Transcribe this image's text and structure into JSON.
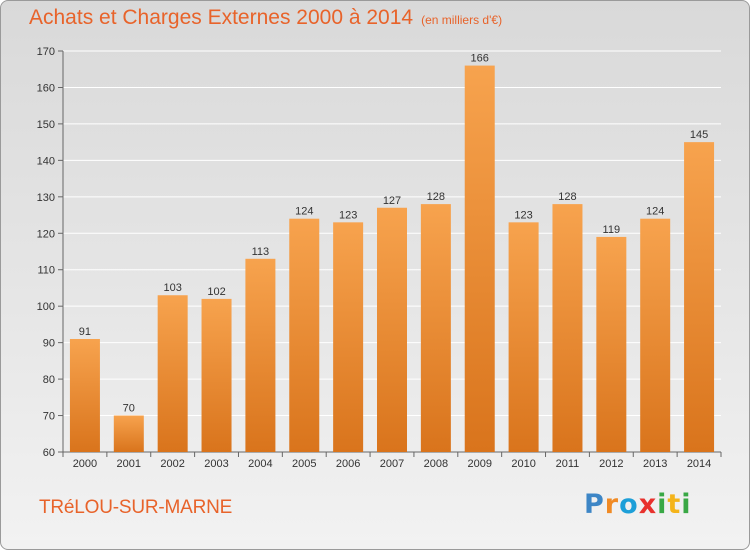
{
  "header": {
    "title": "Achats et Charges Externes 2000 à 2014",
    "unit": "(en milliers d'€)"
  },
  "footer": {
    "commune": "TRéLOU-SUR-MARNE",
    "logo_letters": [
      "P",
      "r",
      "o",
      "x",
      "i",
      "t",
      "i"
    ],
    "logo_colors": [
      "#3d86c6",
      "#f08a24",
      "#1d9fd8",
      "#e8312d",
      "#39a845",
      "#f4b41a",
      "#39a845"
    ]
  },
  "colors": {
    "bar_light": "#f7a34e",
    "bar_dark": "#d9741c",
    "grid": "#ffffff",
    "title": "#e8632a"
  },
  "chart_data": {
    "type": "bar",
    "categories": [
      "2000",
      "2001",
      "2002",
      "2003",
      "2004",
      "2005",
      "2006",
      "2007",
      "2008",
      "2009",
      "2010",
      "2011",
      "2012",
      "2013",
      "2014"
    ],
    "values": [
      91,
      70,
      103,
      102,
      113,
      124,
      123,
      127,
      128,
      166,
      123,
      128,
      119,
      124,
      145
    ],
    "title": "Achats et Charges Externes 2000 à 2014",
    "xlabel": "",
    "ylabel": "",
    "ylim": [
      60,
      170
    ],
    "yticks": [
      60,
      70,
      80,
      90,
      100,
      110,
      120,
      130,
      140,
      150,
      160,
      170
    ],
    "grid": true,
    "legend": "none"
  }
}
